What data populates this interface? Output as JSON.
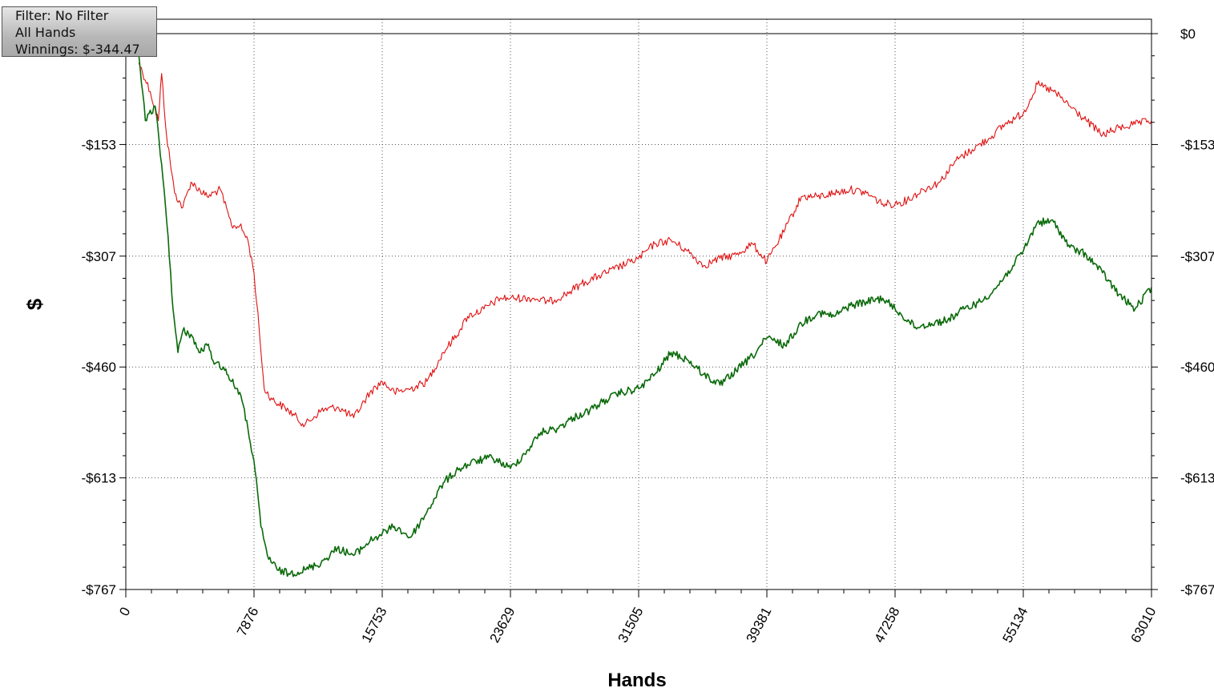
{
  "info_box": {
    "filter": "Filter: No Filter",
    "hands": "All Hands",
    "winnings": "Winnings: $-344.47"
  },
  "colors": {
    "red_line": "#e01010",
    "green_line": "#0a6a0a",
    "grid": "#555555",
    "axis": "#000000"
  },
  "chart_data": {
    "type": "line",
    "title": "",
    "xlabel": "Hands",
    "ylabel": "$",
    "xlim": [
      0,
      63010
    ],
    "ylim": [
      -767,
      0
    ],
    "x_ticks": [
      0,
      7876,
      15753,
      23629,
      31505,
      39381,
      47258,
      55134,
      63010
    ],
    "x_tick_labels": [
      "0",
      "7876",
      "15753",
      "23629",
      "31505",
      "39381",
      "47258",
      "55134",
      "63010"
    ],
    "y_ticks": [
      0,
      -153,
      -307,
      -460,
      -613,
      -767
    ],
    "y_tick_labels_left": [
      "",
      "-$153",
      "-$307",
      "-$460",
      "-$613",
      "-$767"
    ],
    "y_tick_labels_right": [
      "$0",
      "-$153",
      "-$307",
      "-$460",
      "-$613",
      "-$767"
    ],
    "grid": true,
    "series": [
      {
        "color": "#e01010",
        "x": [
          800,
          1500,
          2000,
          2200,
          2500,
          3000,
          3500,
          4000,
          5000,
          5800,
          6500,
          7000,
          7500,
          7876,
          8200,
          8500,
          9000,
          10000,
          11000,
          12000,
          13000,
          14000,
          15000,
          15753,
          16500,
          17500,
          18500,
          19500,
          20500,
          21000,
          22000,
          23000,
          23629,
          25000,
          26000,
          27000,
          28000,
          29000,
          30000,
          31000,
          31505,
          32500,
          33500,
          34500,
          35500,
          36500,
          37500,
          38500,
          39381,
          40500,
          41500,
          42500,
          43500,
          44500,
          45500,
          46500,
          47258,
          48000,
          49000,
          50000,
          51000,
          52000,
          53000,
          54000,
          55134,
          56000,
          57000,
          58000,
          59000,
          60000,
          61000,
          62000,
          63010
        ],
        "y": [
          -40,
          -80,
          -120,
          -55,
          -140,
          -220,
          -240,
          -205,
          -225,
          -215,
          -265,
          -265,
          -285,
          -330,
          -410,
          -490,
          -505,
          -520,
          -540,
          -520,
          -515,
          -530,
          -495,
          -480,
          -495,
          -490,
          -480,
          -440,
          -410,
          -390,
          -380,
          -365,
          -365,
          -365,
          -370,
          -360,
          -345,
          -335,
          -325,
          -315,
          -310,
          -290,
          -285,
          -300,
          -320,
          -310,
          -305,
          -290,
          -315,
          -270,
          -225,
          -225,
          -220,
          -215,
          -220,
          -235,
          -235,
          -230,
          -215,
          -205,
          -175,
          -160,
          -145,
          -125,
          -110,
          -70,
          -80,
          -100,
          -120,
          -140,
          -130,
          -125,
          -120
        ]
      },
      {
        "color": "#0a6a0a",
        "x": [
          800,
          1200,
          1800,
          2200,
          2600,
          2900,
          3200,
          3500,
          4000,
          4500,
          5000,
          5500,
          6000,
          6500,
          7000,
          7500,
          7876,
          8300,
          8700,
          9300,
          10000,
          11000,
          12000,
          13000,
          14000,
          15000,
          15753,
          16500,
          17500,
          18500,
          19500,
          20500,
          21500,
          22500,
          23629,
          24500,
          25500,
          26500,
          27500,
          28500,
          29500,
          30500,
          31505,
          32500,
          33500,
          34500,
          35500,
          36500,
          37500,
          38500,
          39381,
          40500,
          41500,
          42500,
          43500,
          44500,
          45500,
          46500,
          47258,
          48500,
          49500,
          50500,
          51500,
          52500,
          53500,
          54500,
          55134,
          56000,
          57000,
          58000,
          59000,
          60000,
          61000,
          62000,
          63010
        ],
        "y": [
          -30,
          -120,
          -100,
          -180,
          -280,
          -380,
          -440,
          -410,
          -415,
          -440,
          -430,
          -455,
          -460,
          -480,
          -495,
          -545,
          -590,
          -680,
          -720,
          -740,
          -745,
          -740,
          -730,
          -710,
          -720,
          -700,
          -690,
          -680,
          -695,
          -660,
          -620,
          -600,
          -590,
          -585,
          -600,
          -580,
          -550,
          -545,
          -530,
          -520,
          -505,
          -495,
          -490,
          -470,
          -440,
          -450,
          -470,
          -485,
          -465,
          -445,
          -420,
          -430,
          -400,
          -385,
          -390,
          -375,
          -370,
          -365,
          -380,
          -405,
          -400,
          -395,
          -380,
          -370,
          -350,
          -320,
          -300,
          -260,
          -260,
          -295,
          -305,
          -330,
          -360,
          -380,
          -350
        ]
      }
    ]
  }
}
